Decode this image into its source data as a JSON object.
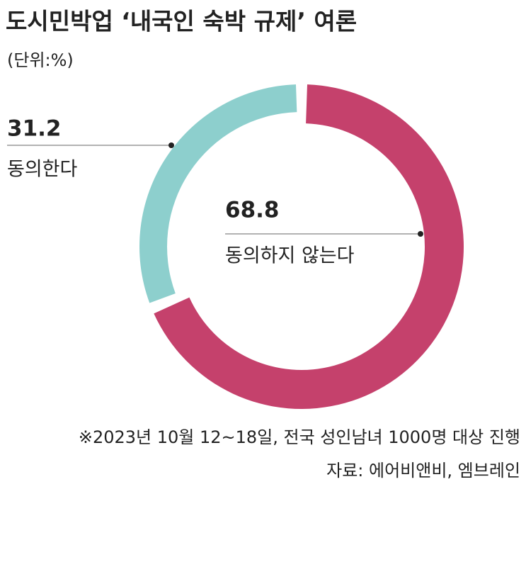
{
  "chart_data": {
    "type": "pie",
    "title": "도시민박업 ‘내국인 숙박 규제’ 여론",
    "subtitle": "(단위:%)",
    "categories": [
      "동의한다",
      "동의하지 않는다"
    ],
    "values": [
      31.2,
      68.8
    ],
    "colors": [
      "#8dcfcd",
      "#c5416c"
    ],
    "notes": [
      "※2023년 10월 12~18일, 전국 성인남녀 1000명 대상 진행",
      "자료: 에어비앤비, 엠브레인"
    ]
  }
}
